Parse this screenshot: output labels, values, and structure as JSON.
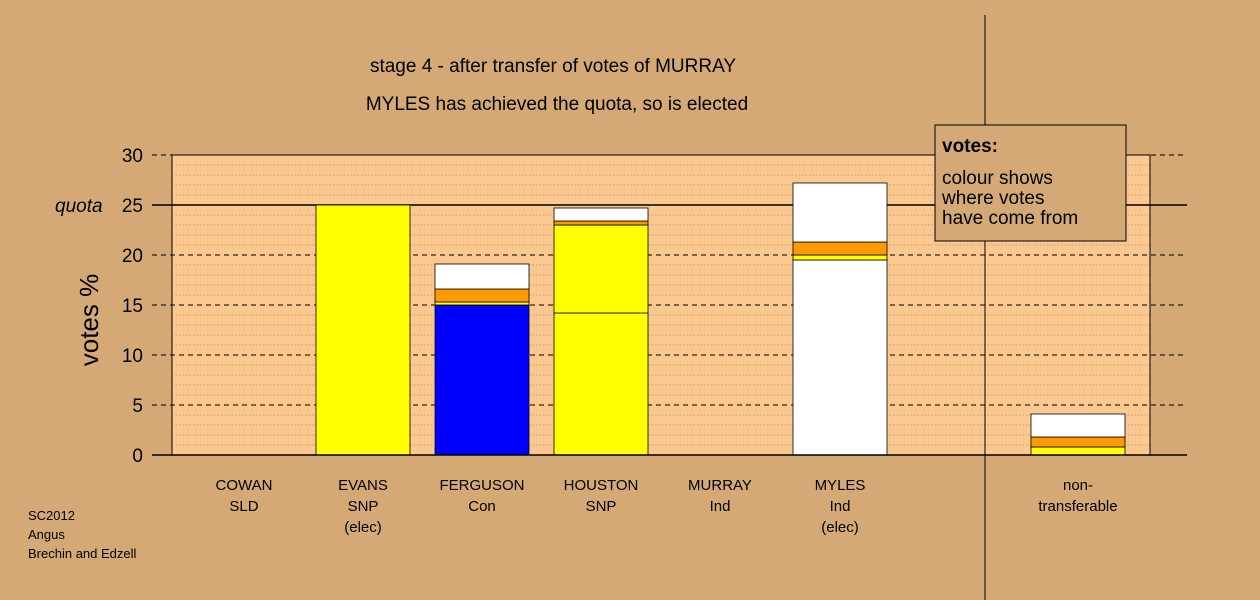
{
  "titles": {
    "line1": "stage 4 - after transfer of votes of MURRAY",
    "line2": "MYLES has achieved the quota, so is elected"
  },
  "legend": {
    "heading": "votes:",
    "lines": [
      "colour shows",
      "where votes",
      "have come from"
    ]
  },
  "footer": {
    "lines": [
      "SC2012",
      "Angus",
      "Brechin and Edzell"
    ]
  },
  "colors": {
    "background": "#d4a976",
    "plot_area": "#fbc890",
    "legend_box": "#d4a976",
    "yellow": "#ffff00",
    "blue": "#0000ff",
    "orange": "#ff9900",
    "white": "#ffffff"
  },
  "chart_data": {
    "type": "bar",
    "stacked": true,
    "ylabel": "votes %",
    "ylim": [
      0,
      30
    ],
    "yticks": [
      0,
      5,
      10,
      15,
      20,
      25,
      30
    ],
    "quota": {
      "value": 25,
      "label": "quota"
    },
    "grid": true,
    "categories": [
      {
        "lines": [
          "COWAN",
          "SLD"
        ]
      },
      {
        "lines": [
          "EVANS",
          "SNP",
          "(elec)"
        ]
      },
      {
        "lines": [
          "FERGUSON",
          "Con"
        ]
      },
      {
        "lines": [
          "HOUSTON",
          "SNP"
        ]
      },
      {
        "lines": [
          "MURRAY",
          "Ind"
        ]
      },
      {
        "lines": [
          "MYLES",
          "Ind",
          "(elec)"
        ]
      },
      {
        "lines": [
          "non-",
          "transferable"
        ]
      }
    ],
    "stacks": [
      [],
      [
        {
          "value": 25.0,
          "color": "#ffff00"
        }
      ],
      [
        {
          "value": 15.0,
          "color": "#0000ff"
        },
        {
          "value": 0.3,
          "color": "#ffff00"
        },
        {
          "value": 1.3,
          "color": "#ff9900"
        },
        {
          "value": 2.5,
          "color": "#ffffff"
        }
      ],
      [
        {
          "value": 14.2,
          "color": "#ffff00"
        },
        {
          "value": 8.8,
          "color": "#ffff00"
        },
        {
          "value": 0.4,
          "color": "#ff9900"
        },
        {
          "value": 1.3,
          "color": "#ffffff"
        }
      ],
      [],
      [
        {
          "value": 19.5,
          "color": "#ffffff"
        },
        {
          "value": 0.5,
          "color": "#ffff00"
        },
        {
          "value": 1.3,
          "color": "#ff9900"
        },
        {
          "value": 5.9,
          "color": "#ffffff"
        }
      ],
      [
        {
          "value": 0.8,
          "color": "#ffff00"
        },
        {
          "value": 1.0,
          "color": "#ff9900"
        },
        {
          "value": 2.3,
          "color": "#ffffff"
        }
      ]
    ]
  }
}
